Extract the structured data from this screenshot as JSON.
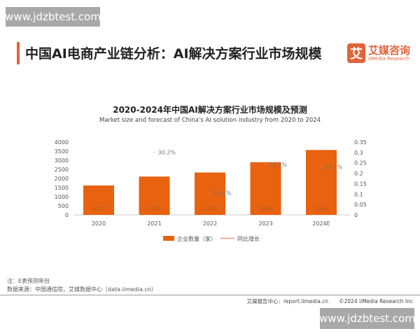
{
  "watermark": "www.jdzbtest.com",
  "header": {
    "title": "中国AI电商产业链分析：AI解决方案行业市场规模",
    "logo_cn": "艾媒咨询",
    "logo_en": "iiMedia Research",
    "logo_mark": "艾"
  },
  "colors": {
    "bar": "#e8620f",
    "line": "#e8a585",
    "accent": "#e0643a"
  },
  "chart_data": {
    "type": "bar",
    "title": "2020-2024年中国AI解决方案行业市场规模及预测",
    "subtitle": "Market size and forecast of China's AI solution industry from 2020 to 2024",
    "categories": [
      "2020",
      "2021",
      "2022",
      "2023",
      "2024E"
    ],
    "series": [
      {
        "name": "企业数量（家）",
        "type": "bar",
        "axis": "left",
        "values": [
          1617,
          2106,
          2329,
          2896,
          3566
        ],
        "labels": [
          "1617",
          "2106",
          "2329",
          "2896",
          "3566"
        ]
      },
      {
        "name": "同比增长",
        "type": "line",
        "axis": "right",
        "values": [
          null,
          0.302,
          0.106,
          0.243,
          0.231
        ],
        "labels": [
          "",
          "30.2%",
          "10.6%",
          "24.3%",
          "23.1%"
        ]
      }
    ],
    "ylim_left": [
      0,
      4000
    ],
    "yticks_left": [
      "0",
      "500",
      "1000",
      "1500",
      "2000",
      "2500",
      "3000",
      "3500",
      "4000"
    ],
    "ylim_right": [
      0,
      0.35
    ],
    "yticks_right": [
      "0",
      "0.05",
      "0.1",
      "0.15",
      "0.2",
      "0.25",
      "0.3",
      "0.35"
    ],
    "grid": false,
    "legend": "bottom"
  },
  "notes": {
    "note": "注：E表预测年份",
    "source": "数据来源：中国通信院，艾媒数据中心（data.iimedia.cn）"
  },
  "footer": {
    "text": "艾媒报告中心：report.iimedia.cn　　©2024  iiMedia Research  Inc"
  }
}
